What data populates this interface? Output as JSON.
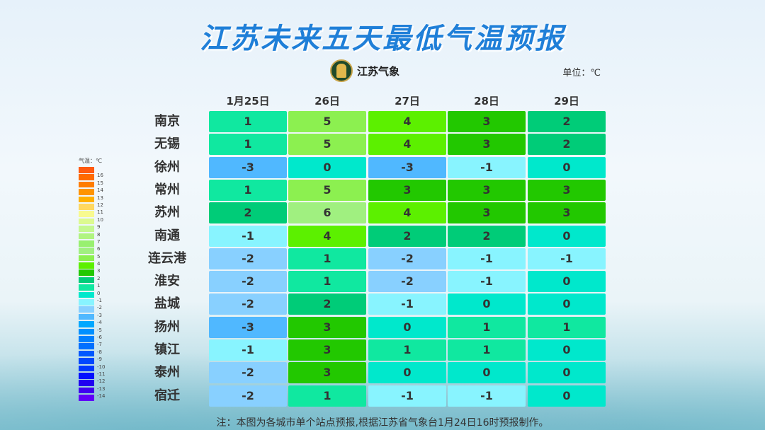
{
  "title": "江苏未来五天最低气温预报",
  "logo_text": "江苏气象",
  "unit": "单位：℃",
  "dates": [
    "1月25日",
    "26日",
    "27日",
    "28日",
    "29日"
  ],
  "rows": [
    {
      "city": "南京",
      "values": [
        1,
        5,
        4,
        3,
        2
      ]
    },
    {
      "city": "无锡",
      "values": [
        1,
        5,
        4,
        3,
        2
      ]
    },
    {
      "city": "徐州",
      "values": [
        -3,
        0,
        -3,
        -1,
        0
      ]
    },
    {
      "city": "常州",
      "values": [
        1,
        5,
        3,
        3,
        3
      ]
    },
    {
      "city": "苏州",
      "values": [
        2,
        6,
        4,
        3,
        3
      ]
    },
    {
      "city": "南通",
      "values": [
        -1,
        4,
        2,
        2,
        0
      ]
    },
    {
      "city": "连云港",
      "values": [
        -2,
        1,
        -2,
        -1,
        -1
      ]
    },
    {
      "city": "淮安",
      "values": [
        -2,
        1,
        -2,
        -1,
        0
      ]
    },
    {
      "city": "盐城",
      "values": [
        -2,
        2,
        -1,
        0,
        0
      ]
    },
    {
      "city": "扬州",
      "values": [
        -3,
        3,
        0,
        1,
        1
      ]
    },
    {
      "city": "镇江",
      "values": [
        -1,
        3,
        1,
        1,
        0
      ]
    },
    {
      "city": "泰州",
      "values": [
        -2,
        3,
        0,
        0,
        0
      ]
    },
    {
      "city": "宿迁",
      "values": [
        -2,
        1,
        -1,
        -1,
        0
      ]
    }
  ],
  "legend": {
    "title": "气温：℃",
    "items": [
      {
        "label": "",
        "color": "#ff5a10"
      },
      {
        "label": "16",
        "color": "#ff6a00"
      },
      {
        "label": "15",
        "color": "#ff7c00"
      },
      {
        "label": "14",
        "color": "#ff9400"
      },
      {
        "label": "13",
        "color": "#ffb000"
      },
      {
        "label": "12",
        "color": "#ffd860"
      },
      {
        "label": "11",
        "color": "#f8fa90"
      },
      {
        "label": "10",
        "color": "#dcfa90"
      },
      {
        "label": "9",
        "color": "#c4f890"
      },
      {
        "label": "8",
        "color": "#b0f480"
      },
      {
        "label": "7",
        "color": "#98f070"
      },
      {
        "label": "6",
        "color": "#a0f080"
      },
      {
        "label": "5",
        "color": "#8cf050"
      },
      {
        "label": "4",
        "color": "#5cf000"
      },
      {
        "label": "3",
        "color": "#22c800"
      },
      {
        "label": "2",
        "color": "#00cc78"
      },
      {
        "label": "1",
        "color": "#10e8a0"
      },
      {
        "label": "0",
        "color": "#00e8cc"
      },
      {
        "label": "-1",
        "color": "#88f4ff"
      },
      {
        "label": "-2",
        "color": "#88d0ff"
      },
      {
        "label": "-3",
        "color": "#50b8ff"
      },
      {
        "label": "-4",
        "color": "#00a8ff"
      },
      {
        "label": "-5",
        "color": "#0090ff"
      },
      {
        "label": "-6",
        "color": "#0080ff"
      },
      {
        "label": "-7",
        "color": "#0070ff"
      },
      {
        "label": "-8",
        "color": "#0058ff"
      },
      {
        "label": "-9",
        "color": "#0048ff"
      },
      {
        "label": "-10",
        "color": "#0038ff"
      },
      {
        "label": "-11",
        "color": "#0010ff"
      },
      {
        "label": "-12",
        "color": "#2000f0"
      },
      {
        "label": "-13",
        "color": "#4000f0"
      },
      {
        "label": "-14",
        "color": "#6000f8"
      }
    ]
  },
  "note": "注：本图为各城市单个站点预报,根据江苏省气象台1月24日16时预报制作。"
}
